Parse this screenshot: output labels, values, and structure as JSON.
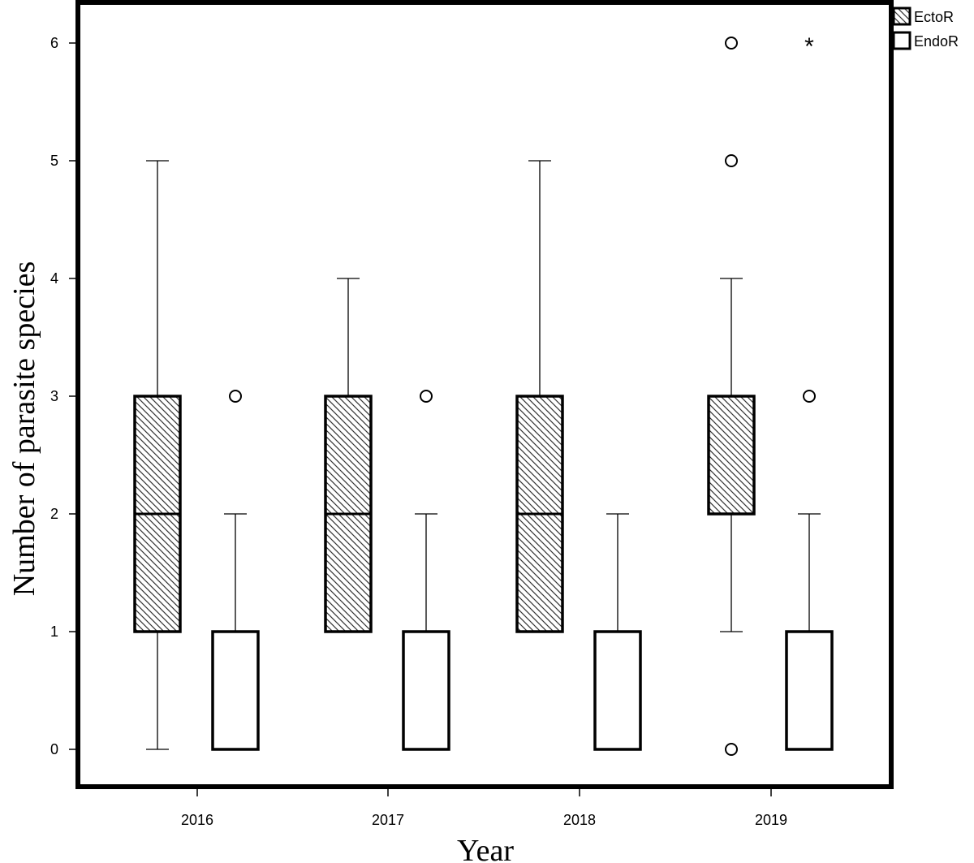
{
  "chart_data": {
    "type": "boxplot",
    "title": "",
    "xlabel": "Year",
    "ylabel": "Number of parasite species",
    "categories": [
      "2016",
      "2017",
      "2018",
      "2019"
    ],
    "ylim": [
      -0.35,
      6.3
    ],
    "yticks": [
      0,
      1,
      2,
      3,
      4,
      5,
      6
    ],
    "grid": false,
    "legend_position": "top-right",
    "series": [
      {
        "name": "EctoR",
        "pattern": "diagonal-hatch",
        "boxes": [
          {
            "q1": 1,
            "median": 2,
            "q3": 3,
            "whisker_low": 0,
            "whisker_high": 5,
            "outliers": [],
            "extremes": []
          },
          {
            "q1": 1,
            "median": 2,
            "q3": 3,
            "whisker_low": 1,
            "whisker_high": 4,
            "outliers": [],
            "extremes": []
          },
          {
            "q1": 1,
            "median": 2,
            "q3": 3,
            "whisker_low": 1,
            "whisker_high": 5,
            "outliers": [],
            "extremes": []
          },
          {
            "q1": 2,
            "median": 2,
            "q3": 3,
            "whisker_low": 1,
            "whisker_high": 4,
            "outliers": [
              0,
              5,
              6
            ],
            "extremes": []
          }
        ]
      },
      {
        "name": "EndoR",
        "pattern": "none",
        "boxes": [
          {
            "q1": 0,
            "median": 0,
            "q3": 1,
            "whisker_low": 0,
            "whisker_high": 2,
            "outliers": [
              3
            ],
            "extremes": []
          },
          {
            "q1": 0,
            "median": 0,
            "q3": 1,
            "whisker_low": 0,
            "whisker_high": 2,
            "outliers": [
              3
            ],
            "extremes": []
          },
          {
            "q1": 0,
            "median": 0,
            "q3": 1,
            "whisker_low": 0,
            "whisker_high": 2,
            "outliers": [],
            "extremes": []
          },
          {
            "q1": 0,
            "median": 0,
            "q3": 1,
            "whisker_low": 0,
            "whisker_high": 2,
            "outliers": [
              3
            ],
            "extremes": [
              6
            ]
          }
        ]
      }
    ],
    "colors": {
      "stroke": "#000000",
      "fill": "#ffffff",
      "hatch": "#333333"
    }
  }
}
